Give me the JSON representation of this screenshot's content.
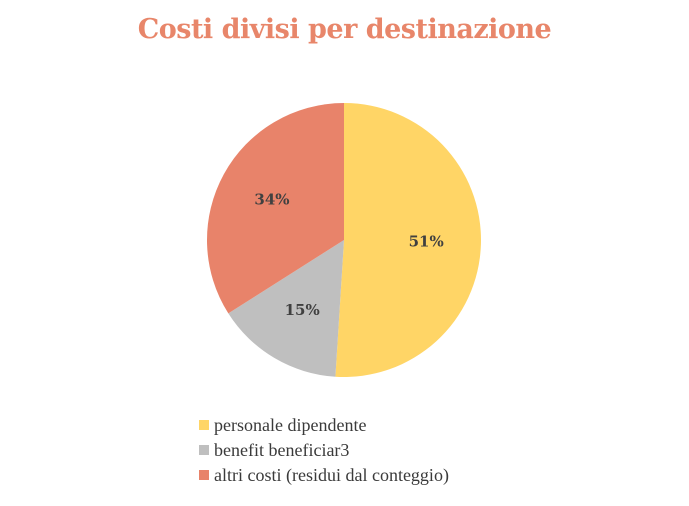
{
  "chart_data": {
    "type": "pie",
    "title": "Costi divisi per destinazione",
    "slices": [
      {
        "label": "personale dipendente",
        "value": 51,
        "display": "51%",
        "color": "#FFD566"
      },
      {
        "label": "benefit beneficiar3",
        "value": 15,
        "display": "15%",
        "color": "#BFBFBF"
      },
      {
        "label": "altri costi (residui dal conteggio)",
        "value": 34,
        "display": "34%",
        "color": "#E8836A"
      }
    ],
    "legend_position": "bottom",
    "start_angle_deg": 0,
    "direction": "clockwise"
  }
}
